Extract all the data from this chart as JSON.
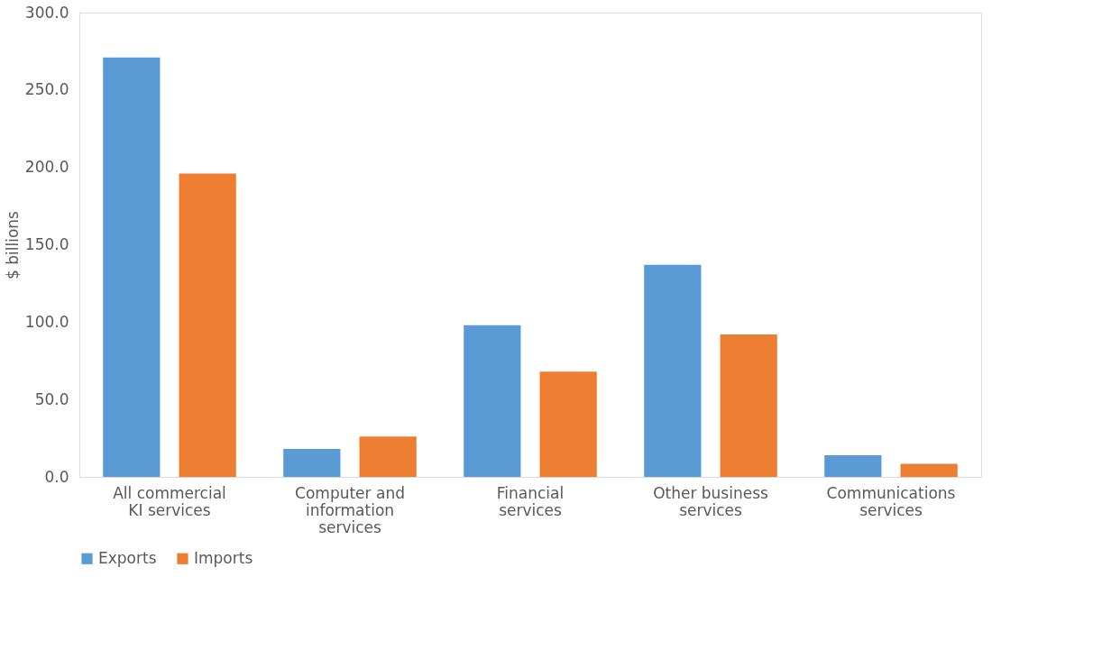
{
  "chart_data": {
    "type": "bar",
    "ylabel": "$ billions",
    "categories": [
      "All commercial\nKI services",
      "Computer and\ninformation\nservices",
      "Financial\nservices",
      "Other business\nservices",
      "Communications\nservices"
    ],
    "series": [
      {
        "name": "Exports",
        "color": "#5b9bd5",
        "values": [
          271,
          18,
          98,
          137,
          14
        ]
      },
      {
        "name": "Imports",
        "color": "#ed7d31",
        "values": [
          196,
          26,
          68,
          92,
          8.5
        ]
      }
    ],
    "ylim": [
      0,
      300
    ],
    "yticks": [
      {
        "value": 0,
        "label": "0.0"
      },
      {
        "value": 50,
        "label": "50.0"
      },
      {
        "value": 100,
        "label": "100.0"
      },
      {
        "value": 150,
        "label": "150.0"
      },
      {
        "value": 200,
        "label": "200.0"
      },
      {
        "value": 250,
        "label": "250.0"
      },
      {
        "value": 300,
        "label": "300.0"
      }
    ],
    "grid": false,
    "legend": "bottom"
  }
}
